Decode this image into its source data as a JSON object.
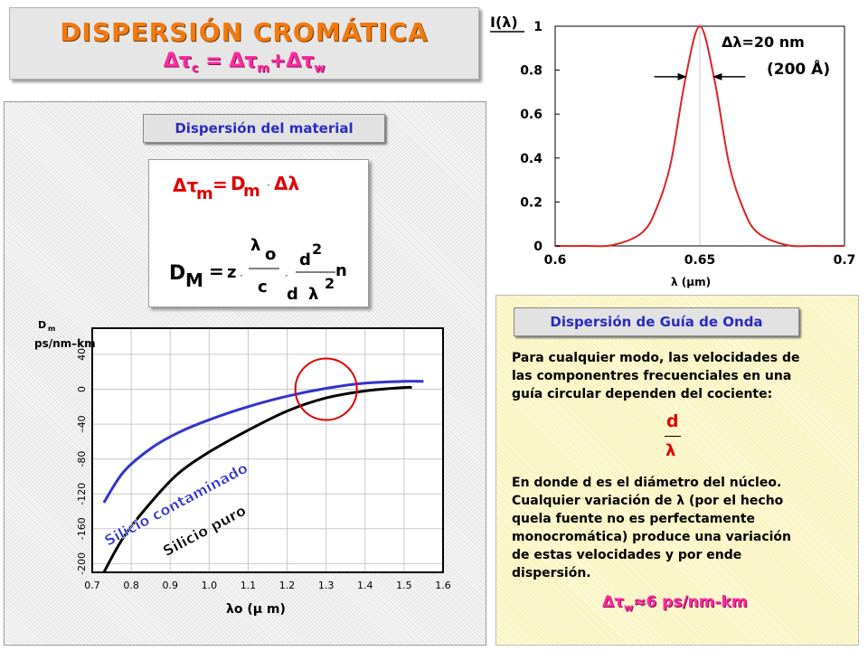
{
  "title": {
    "main": "DISPERSIÓN CROMÁTICA",
    "eq_left": "Δτ",
    "eq_left_sub": "c",
    "eq_mid": " = Δτ",
    "eq_mid_sub": "m",
    "eq_plus": "+Δτ",
    "eq_plus_sub": "w"
  },
  "material": {
    "label": "Dispersión del material",
    "eq1": {
      "dtau": "Δτ",
      "sub_m": "m",
      "eq": "=",
      "D": "D",
      "Dsub": "m",
      "dot": "·",
      "dlambda": "Δλ"
    },
    "eq2": {
      "D": "D",
      "Dsub": "M",
      "eq": "=",
      "z": "z",
      "dot1": "·",
      "lambda": "λ",
      "lsub": "o",
      "c": "c",
      "dot2": "·",
      "d2": "d",
      "sup2": "2",
      "dden": "d",
      "lden": "λ",
      "sup2b": "2",
      "n": "n"
    }
  },
  "guide": {
    "label": "Dispersión de Guía de Onda",
    "para1": [
      "Para cualquier modo, las velocidades de",
      "las componentres frecuenciales en una",
      "guía circular dependen del cociente:"
    ],
    "frac_num": "d",
    "frac_den": "λ",
    "para2": [
      "En donde d es el diámetro del núcleo.",
      "Cualquier variación de λ (por el hecho",
      "quela fuente no es perfectamente",
      "monocromática) produce una variación",
      "de estas velocidades y por ende",
      "dispersión."
    ],
    "result": "Δτ",
    "result_sub": "w",
    "result_rest": "≈6 ps/nm-km"
  },
  "colors": {
    "title_orange": "#f07a10",
    "title_magenta": "#ff2aa0",
    "label_blue": "#2a2ac0",
    "curve_red": "#dd2222",
    "contaminated_blue": "#3333cc"
  },
  "chart_data": [
    {
      "type": "line",
      "title": "",
      "ylabel": "I(λ)",
      "xlabel": "λ (μm)",
      "xlim": [
        0.6,
        0.7
      ],
      "ylim": [
        0,
        1
      ],
      "x_ticks": [
        "0.6",
        "0.65",
        "0.7"
      ],
      "y_ticks": [
        "0",
        "0.2",
        "0.4",
        "0.6",
        "0.8",
        "1"
      ],
      "grid": "vertical",
      "annotation": {
        "line1": "Δλ=20 nm",
        "line2": "(200 Å)"
      },
      "series": [
        {
          "x": [
            0.6,
            0.61,
            0.62,
            0.63,
            0.635,
            0.64,
            0.645,
            0.65,
            0.655,
            0.66,
            0.665,
            0.67,
            0.68,
            0.69,
            0.7
          ],
          "values": [
            0,
            0,
            0.004,
            0.06,
            0.17,
            0.38,
            0.76,
            1.0,
            0.76,
            0.38,
            0.17,
            0.06,
            0.004,
            0,
            0
          ]
        }
      ]
    },
    {
      "type": "line",
      "title": "",
      "ylabel": "Dm ps/nm–km",
      "ylabel_main": "D",
      "ylabel_sub": "m",
      "ylabel_unit": "ps/nm–km",
      "xlabel": "λo (μ m)",
      "xlim": [
        0.7,
        1.6
      ],
      "ylim": [
        -210,
        70
      ],
      "x_ticks": [
        "0.7",
        "0.8",
        "0.9",
        "1.0",
        "1.1",
        "1.2",
        "1.3",
        "1.4",
        "1.5",
        "1.6"
      ],
      "y_ticks": [
        "-200",
        "-160",
        "-120",
        "-80",
        "–40",
        "0",
        "40"
      ],
      "grid": "both",
      "series": [
        {
          "name": "Silicio contaminado",
          "x": [
            0.73,
            0.78,
            0.85,
            0.92,
            1.0,
            1.1,
            1.2,
            1.3,
            1.4,
            1.5,
            1.55
          ],
          "values": [
            -130,
            -95,
            -68,
            -50,
            -35,
            -20,
            -8,
            1,
            7,
            9,
            9
          ]
        },
        {
          "name": "Silicio puro",
          "x": [
            0.73,
            0.78,
            0.85,
            0.92,
            1.0,
            1.1,
            1.2,
            1.3,
            1.4,
            1.5,
            1.52
          ],
          "values": [
            -210,
            -170,
            -130,
            -97,
            -72,
            -47,
            -25,
            -10,
            -2,
            2,
            2
          ]
        }
      ],
      "highlight": {
        "x": 1.3,
        "y": 0
      }
    }
  ]
}
